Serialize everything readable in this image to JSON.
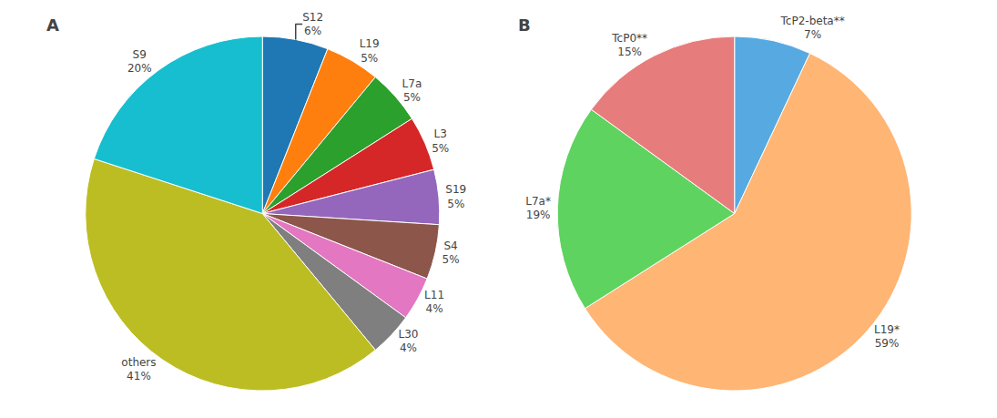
{
  "chart_data": [
    {
      "type": "pie",
      "title": "A",
      "categories": [
        "S12",
        "L19",
        "L7a",
        "L3",
        "S19",
        "S4",
        "L11",
        "L30",
        "others",
        "S9"
      ],
      "values": [
        6,
        5,
        5,
        5,
        5,
        5,
        4,
        4,
        41,
        20
      ],
      "value_labels": [
        "6%",
        "5%",
        "5%",
        "5%",
        "5%",
        "5%",
        "4%",
        "4%",
        "41%",
        "20%"
      ]
    },
    {
      "type": "pie",
      "title": "B",
      "categories": [
        "TcP2-beta**",
        "L19*",
        "L7a*",
        "TcP0**"
      ],
      "values": [
        7,
        59,
        19,
        15
      ],
      "value_labels": [
        "7%",
        "59%",
        "19%",
        "15%"
      ]
    }
  ]
}
